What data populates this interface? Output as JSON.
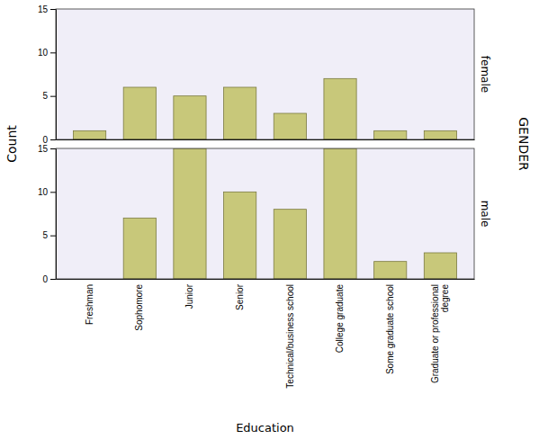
{
  "chart_data": [
    {
      "type": "bar",
      "title": "female",
      "ylabel": "Count",
      "annotations": [
        "GENDER"
      ],
      "categories": [
        "Freshman",
        "Sophomore",
        "Junior",
        "Senior",
        "Technical/business school",
        "College graduate",
        "Some graduate school",
        "Graduate or professional\ndegree"
      ],
      "values": [
        1,
        6,
        5,
        6,
        3,
        7,
        1,
        1
      ],
      "color": "#c8c87a",
      "ylim": [
        0,
        15
      ],
      "yticks": [
        0,
        5,
        10,
        15
      ],
      "tick_labels": "y"
    },
    {
      "type": "bar",
      "title": "male",
      "xlabel": "Education",
      "categories": [
        "Freshman",
        "Sophomore",
        "Junior",
        "Senior",
        "Technical/business school",
        "College graduate",
        "Some graduate school",
        "Graduate or professional\ndegree"
      ],
      "values": [
        0,
        7,
        15,
        10,
        8,
        15,
        2,
        3
      ],
      "color": "#c8c87a",
      "ylim": [
        0,
        15
      ],
      "yticks": [
        0,
        5,
        10,
        15
      ]
    }
  ]
}
